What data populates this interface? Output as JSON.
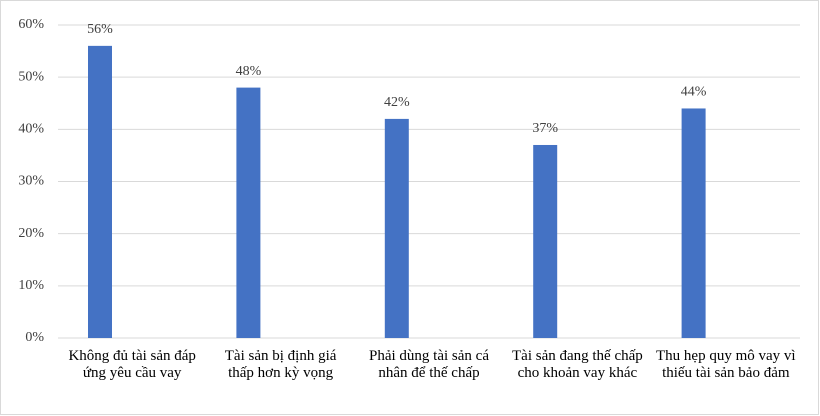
{
  "chart_data": {
    "type": "bar",
    "categories": [
      "Không đủ tài sản đáp ứng yêu cầu vay",
      "Tài sản bị định giá thấp hơn kỳ vọng",
      "Phải dùng tài sản cá nhân để thế chấp",
      "Tài sản đang thế chấp cho khoản vay khác",
      "Thu hẹp quy mô vay vì thiếu tài sản bảo đảm"
    ],
    "values": [
      56,
      48,
      42,
      37,
      44
    ],
    "value_labels": [
      "56%",
      "48%",
      "42%",
      "37%",
      "44%"
    ],
    "color": "#4472c4",
    "ylim": [
      0,
      60
    ],
    "yticks": [
      {
        "value": 0,
        "label": "0%"
      },
      {
        "value": 10,
        "label": "10%"
      },
      {
        "value": 20,
        "label": "20%"
      },
      {
        "value": 30,
        "label": "30%"
      },
      {
        "value": 40,
        "label": "40%"
      },
      {
        "value": 50,
        "label": "50%"
      },
      {
        "value": 60,
        "label": "60%"
      }
    ],
    "grid": true
  }
}
